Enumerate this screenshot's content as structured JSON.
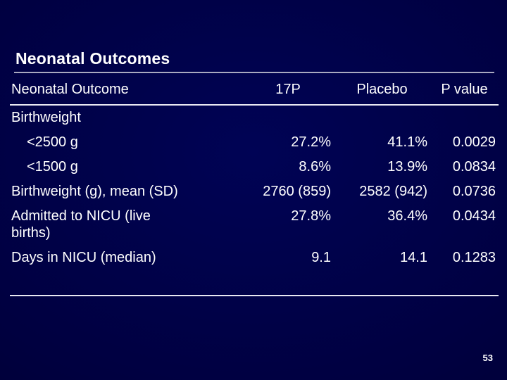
{
  "slide": {
    "title": "Neonatal Outcomes",
    "page_number": "53",
    "colors": {
      "background": "#000040",
      "text": "#ffffff",
      "title_rule": "#a9a9c0",
      "table_rule": "#e8e8f2"
    }
  },
  "table": {
    "columns": [
      "Neonatal Outcome",
      "17P",
      "Placebo",
      "P value"
    ],
    "rows": [
      {
        "label": "Birthweight",
        "v17p": "",
        "placebo": "",
        "pvalue": ""
      },
      {
        "label": "<2500 g",
        "v17p": "27.2%",
        "placebo": "41.1%",
        "pvalue": "0.0029"
      },
      {
        "label": "<1500 g",
        "v17p": "8.6%",
        "placebo": "13.9%",
        "pvalue": "0.0834"
      },
      {
        "label": "Birthweight (g), mean (SD)",
        "v17p": "2760 (859)",
        "placebo": "2582 (942)",
        "pvalue": "0.0736"
      },
      {
        "label": "Admitted to NICU (live\nbirths)",
        "v17p": "27.8%",
        "placebo": "36.4%",
        "pvalue": "0.0434"
      },
      {
        "label": "Days in NICU (median)",
        "v17p": "9.1",
        "placebo": "14.1",
        "pvalue": "0.1283"
      }
    ]
  }
}
